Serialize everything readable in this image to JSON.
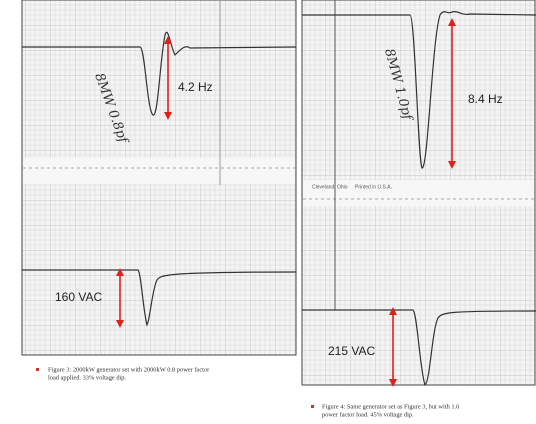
{
  "figure3": {
    "frequency_label": "4.2 Hz",
    "voltage_label": "160 VAC",
    "handwriting": "8MW 0.8pf",
    "caption_lines": [
      "Figure 3: 2000kW generator set with 2000kW 0.8 power factor",
      "load applied. 33% voltage dip."
    ]
  },
  "figure4": {
    "frequency_label": "8.4 Hz",
    "voltage_label": "215 VAC",
    "handwriting": "8MW 1.0pf",
    "paper_imprint": [
      "Cleveland, Ohio",
      "Printed in U.S.A."
    ],
    "caption_lines": [
      "Figure 4: Same generator set as Figure 3, but with 1.0",
      "power factor load.  45% voltage dip."
    ]
  }
}
